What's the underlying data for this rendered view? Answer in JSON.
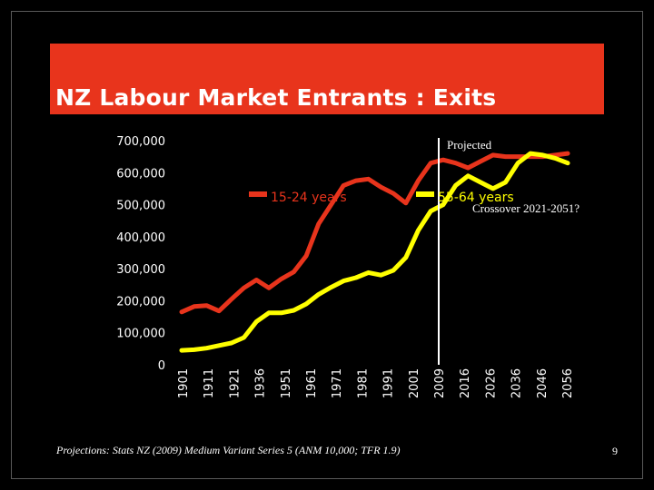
{
  "slide": {
    "title": "NZ Labour Market Entrants : Exits",
    "footnote": "Projections: Stats NZ (2009) Medium Variant Series 5 (ANM 10,000; TFR 1.9)",
    "page_number": "9"
  },
  "colors": {
    "background": "#000000",
    "title_bar": "#e8341c",
    "title_text": "#ffffff",
    "series_15_24": "#e8341c",
    "series_55_64": "#ffff00",
    "divider": "#ffffff"
  },
  "chart_data": {
    "type": "line",
    "title": "",
    "xlabel": "",
    "ylabel": "",
    "ylim": [
      0,
      700000
    ],
    "yticks": [
      0,
      100000,
      200000,
      300000,
      400000,
      500000,
      600000,
      700000
    ],
    "ytick_labels": [
      "0",
      "100,000",
      "200,000",
      "300,000",
      "400,000",
      "500,000",
      "600,000",
      "700,000"
    ],
    "x_tick_labels": [
      "1901",
      "1911",
      "1921",
      "1936",
      "1951",
      "1961",
      "1971",
      "1981",
      "1991",
      "2001",
      "2009",
      "2016",
      "2026",
      "2036",
      "2046",
      "2056"
    ],
    "legend_position": "top-center",
    "annotations": {
      "projected_label": "Projected",
      "projected_from": "2009",
      "crossover_label": "Crossover 2021-2051?"
    },
    "series": [
      {
        "name": "15-24 years",
        "color": "#e8341c",
        "values": [
          165000,
          182000,
          185000,
          168000,
          205000,
          240000,
          265000,
          240000,
          268000,
          290000,
          340000,
          440000,
          500000,
          560000,
          575000,
          580000,
          555000,
          535000,
          505000,
          575000,
          630000,
          640000,
          630000,
          615000,
          635000,
          655000,
          650000,
          650000,
          650000,
          650000,
          655000,
          660000
        ]
      },
      {
        "name": "55-64 years",
        "color": "#ffff00",
        "values": [
          45000,
          47000,
          52000,
          60000,
          68000,
          85000,
          135000,
          162000,
          162000,
          170000,
          190000,
          220000,
          242000,
          262000,
          272000,
          288000,
          280000,
          295000,
          335000,
          420000,
          480000,
          500000,
          560000,
          590000,
          570000,
          550000,
          570000,
          630000,
          660000,
          655000,
          645000,
          630000
        ]
      }
    ]
  }
}
